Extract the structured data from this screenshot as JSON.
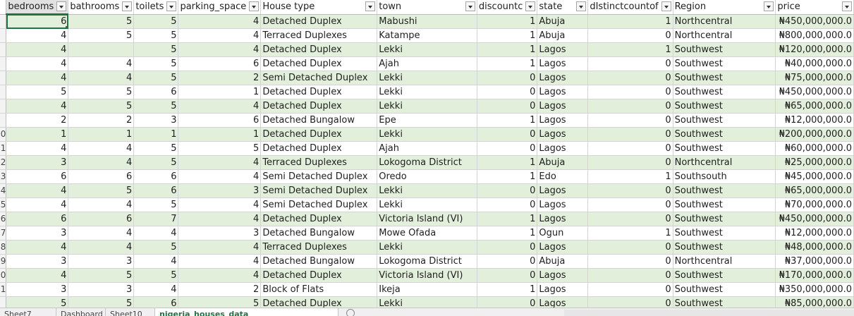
{
  "columns": [
    "bedrooms",
    "bathrooms",
    "toilets",
    "parking_space",
    "House type",
    "town",
    "discountc",
    "state",
    "dIstinctcountof",
    "Region",
    "price"
  ],
  "row_numbers": [
    "",
    "",
    "",
    "",
    "",
    "",
    "",
    "",
    "",
    "0",
    "1",
    "2",
    "3",
    "4",
    "5",
    "6",
    "7",
    "8",
    "9",
    "0",
    "1",
    ""
  ],
  "rows": [
    [
      "6",
      "5",
      "5",
      "4",
      "Detached Duplex",
      "Mabushi",
      "1",
      "Abuja",
      "1",
      "Northcentral",
      "₦450,000,000.0"
    ],
    [
      "4",
      "5",
      "5",
      "4",
      "Terraced Duplexes",
      "Katampe",
      "1",
      "Abuja",
      "0",
      "Northcentral",
      "₦800,000,000.0"
    ],
    [
      "4",
      "",
      "5",
      "4",
      "Detached Duplex",
      "Lekki",
      "1",
      "Lagos",
      "1",
      "Southwest",
      "₦120,000,000.0"
    ],
    [
      "4",
      "4",
      "5",
      "6",
      "Detached Duplex",
      "Ajah",
      "1",
      "Lagos",
      "0",
      "Southwest",
      "₦40,000,000.0"
    ],
    [
      "4",
      "4",
      "5",
      "2",
      "Semi Detached Duplex",
      "Lekki",
      "0",
      "Lagos",
      "0",
      "Southwest",
      "₦75,000,000.0"
    ],
    [
      "5",
      "5",
      "6",
      "1",
      "Detached Duplex",
      "Lekki",
      "0",
      "Lagos",
      "0",
      "Southwest",
      "₦450,000,000.0"
    ],
    [
      "4",
      "5",
      "5",
      "4",
      "Detached Duplex",
      "Lekki",
      "0",
      "Lagos",
      "0",
      "Southwest",
      "₦65,000,000.0"
    ],
    [
      "2",
      "2",
      "3",
      "6",
      "Detached Bungalow",
      "Epe",
      "1",
      "Lagos",
      "0",
      "Southwest",
      "₦12,000,000.0"
    ],
    [
      "1",
      "1",
      "1",
      "1",
      "Detached Duplex",
      "Lekki",
      "0",
      "Lagos",
      "0",
      "Southwest",
      "₦200,000,000.0"
    ],
    [
      "4",
      "4",
      "5",
      "5",
      "Detached Duplex",
      "Ajah",
      "0",
      "Lagos",
      "0",
      "Southwest",
      "₦60,000,000.0"
    ],
    [
      "3",
      "4",
      "5",
      "4",
      "Terraced Duplexes",
      "Lokogoma District",
      "1",
      "Abuja",
      "0",
      "Northcentral",
      "₦25,000,000.0"
    ],
    [
      "6",
      "6",
      "6",
      "4",
      "Semi Detached Duplex",
      "Oredo",
      "1",
      "Edo",
      "1",
      "Southsouth",
      "₦45,000,000.0"
    ],
    [
      "4",
      "5",
      "6",
      "3",
      "Semi Detached Duplex",
      "Lekki",
      "0",
      "Lagos",
      "0",
      "Southwest",
      "₦65,000,000.0"
    ],
    [
      "4",
      "4",
      "5",
      "4",
      "Semi Detached Duplex",
      "Lekki",
      "0",
      "Lagos",
      "0",
      "Southwest",
      "₦70,000,000.0"
    ],
    [
      "6",
      "6",
      "7",
      "4",
      "Detached Duplex",
      "Victoria Island (VI)",
      "1",
      "Lagos",
      "0",
      "Southwest",
      "₦450,000,000.0"
    ],
    [
      "3",
      "4",
      "4",
      "3",
      "Detached Bungalow",
      "Mowe Ofada",
      "1",
      "Ogun",
      "1",
      "Southwest",
      "₦12,000,000.0"
    ],
    [
      "4",
      "4",
      "5",
      "4",
      "Terraced Duplexes",
      "Lekki",
      "0",
      "Lagos",
      "0",
      "Southwest",
      "₦48,000,000.0"
    ],
    [
      "3",
      "3",
      "4",
      "4",
      "Detached Bungalow",
      "Lokogoma District",
      "0",
      "Abuja",
      "0",
      "Northcentral",
      "₦37,000,000.0"
    ],
    [
      "4",
      "5",
      "5",
      "4",
      "Detached Duplex",
      "Victoria Island (VI)",
      "0",
      "Lagos",
      "0",
      "Southwest",
      "₦170,000,000.0"
    ],
    [
      "3",
      "3",
      "4",
      "2",
      "Block of Flats",
      "Ikeja",
      "1",
      "Lagos",
      "0",
      "Southwest",
      "₦350,000,000.0"
    ],
    [
      "5",
      "5",
      "6",
      "5",
      "Detached Duplex",
      "Lekki",
      "0",
      "Lagos",
      "0",
      "Southwest",
      "₦85,000,000.0"
    ]
  ],
  "sheet_tabs": [
    "Sheet7",
    "Dashboard",
    "Sheet10",
    "nigeria_houses_data"
  ],
  "active_tab_index": 3,
  "colors": {
    "band": "#e2efda",
    "accent": "#217346"
  }
}
